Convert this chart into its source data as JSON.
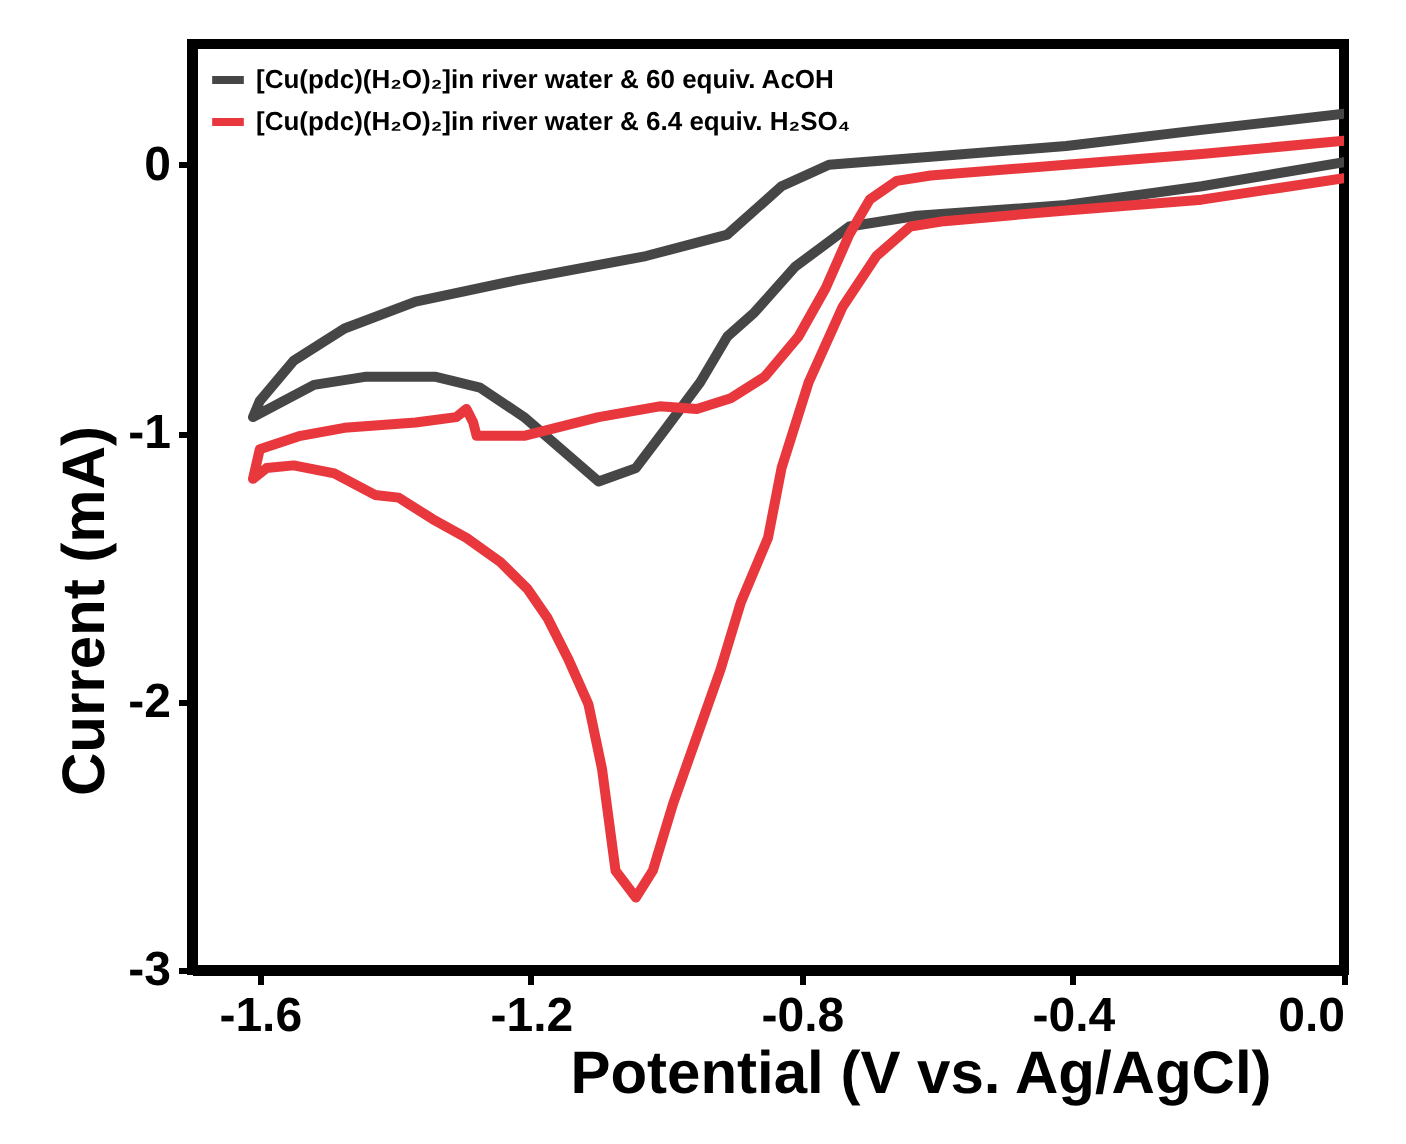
{
  "chart_data": {
    "type": "line",
    "xlabel": "Potential (V vs. Ag/AgCl)",
    "ylabel": "Current (mA)",
    "xlim": [
      -1.7,
      0
    ],
    "ylim": [
      -3,
      0.45
    ],
    "xticks": [
      -1.6,
      -1.2,
      -0.8,
      -0.4,
      {
        "value": 0,
        "label": "0.0"
      }
    ],
    "yticks": [
      0,
      -1,
      -2,
      -3
    ],
    "legend": "top left",
    "series": [
      {
        "name": "[Cu(pdc)(H₂O)₂]in river water & 60 equiv. AcOH",
        "color": "#464646",
        "x": [
          0.0,
          -0.21,
          -0.41,
          -0.63,
          -0.73,
          -0.81,
          -0.87,
          -0.91,
          -0.95,
          -1.0,
          -1.045,
          -1.1,
          -1.155,
          -1.21,
          -1.275,
          -1.34,
          -1.445,
          -1.52,
          -1.61,
          -1.6,
          -1.55,
          -1.475,
          -1.37,
          -1.22,
          -1.03,
          -0.91,
          -0.83,
          -0.76,
          -0.61,
          -0.41,
          -0.21,
          0.0
        ],
        "values": [
          0.01,
          -0.08,
          -0.15,
          -0.19,
          -0.23,
          -0.38,
          -0.55,
          -0.64,
          -0.81,
          -0.98,
          -1.13,
          -1.18,
          -1.06,
          -0.94,
          -0.83,
          -0.79,
          -0.79,
          -0.82,
          -0.94,
          -0.88,
          -0.73,
          -0.61,
          -0.51,
          -0.43,
          -0.34,
          -0.26,
          -0.08,
          0.0,
          0.03,
          0.07,
          0.13,
          0.19
        ]
      },
      {
        "name": "[Cu(pdc)(H₂O)₂]in river water & 6.4 equiv. H₂SO₄",
        "color": "#e8383d",
        "x": [
          0.0,
          -0.21,
          -0.41,
          -0.59,
          -0.64,
          -0.69,
          -0.74,
          -0.79,
          -0.83,
          -0.85,
          -0.89,
          -0.92,
          -0.955,
          -0.99,
          -1.02,
          -1.045,
          -1.075,
          -1.095,
          -1.115,
          -1.145,
          -1.175,
          -1.205,
          -1.245,
          -1.295,
          -1.345,
          -1.395,
          -1.43,
          -1.49,
          -1.55,
          -1.59,
          -1.61,
          -1.6,
          -1.54,
          -1.475,
          -1.37,
          -1.31,
          -1.295,
          -1.285,
          -1.28,
          -1.21,
          -1.1,
          -1.01,
          -0.955,
          -0.905,
          -0.855,
          -0.805,
          -0.765,
          -0.73,
          -0.7,
          -0.66,
          -0.61,
          -0.41,
          -0.21,
          0.0
        ],
        "values": [
          -0.05,
          -0.13,
          -0.17,
          -0.21,
          -0.23,
          -0.34,
          -0.53,
          -0.81,
          -1.13,
          -1.39,
          -1.63,
          -1.88,
          -2.13,
          -2.38,
          -2.63,
          -2.73,
          -2.63,
          -2.25,
          -2.01,
          -1.84,
          -1.69,
          -1.58,
          -1.48,
          -1.39,
          -1.32,
          -1.24,
          -1.23,
          -1.15,
          -1.12,
          -1.13,
          -1.17,
          -1.06,
          -1.01,
          -0.98,
          -0.96,
          -0.94,
          -0.91,
          -0.96,
          -1.01,
          -1.01,
          -0.94,
          -0.9,
          -0.91,
          -0.87,
          -0.79,
          -0.64,
          -0.46,
          -0.26,
          -0.13,
          -0.06,
          -0.04,
          0.0,
          0.04,
          0.09
        ]
      }
    ]
  }
}
